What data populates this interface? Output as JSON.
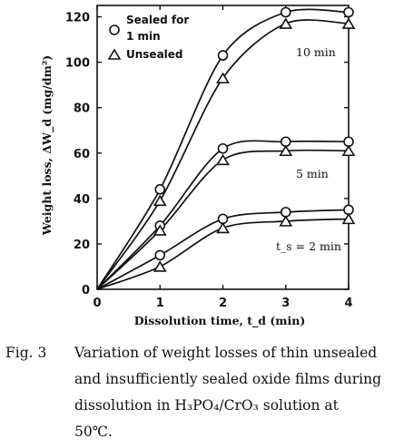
{
  "chart_data": {
    "type": "line",
    "x": [
      0,
      1,
      2,
      3,
      4
    ],
    "xlabel": "Dissolution time, t_d (min)",
    "ylabel": "Weight loss, ΔW_d (mg/dm²)",
    "xlim": [
      0,
      4
    ],
    "ylim": [
      0,
      125
    ],
    "xticks": [
      0,
      1,
      2,
      3,
      4
    ],
    "yticks": [
      0,
      20,
      40,
      60,
      80,
      100,
      120
    ],
    "grid": false,
    "legend": {
      "placement": "top-left",
      "entries": [
        {
          "marker": "circle",
          "lines": [
            "Sealed for",
            "1 min"
          ]
        },
        {
          "marker": "triangle",
          "lines": [
            "Unsealed"
          ]
        }
      ]
    },
    "series": [
      {
        "group": "10 min",
        "marker": "circle",
        "values": [
          0,
          44,
          103,
          122,
          122
        ]
      },
      {
        "group": "10 min",
        "marker": "triangle",
        "values": [
          0,
          39,
          93,
          117,
          117
        ]
      },
      {
        "group": "5 min",
        "marker": "circle",
        "values": [
          0,
          28,
          62,
          65,
          65
        ]
      },
      {
        "group": "5 min",
        "marker": "triangle",
        "values": [
          0,
          26,
          57,
          61,
          61
        ]
      },
      {
        "group": "t_s = 2 min",
        "marker": "circle",
        "values": [
          0,
          15,
          31,
          34,
          35
        ]
      },
      {
        "group": "t_s = 2 min",
        "marker": "triangle",
        "values": [
          0,
          10,
          27,
          30,
          31
        ]
      }
    ],
    "annotations": [
      "10 min",
      "5 min",
      "t_s = 2 min"
    ]
  },
  "caption": {
    "label": "Fig. 3",
    "lines": [
      "Variation of weight losses of thin unsealed",
      "and insufficiently sealed oxide films during",
      "dissolution in H₃PO₄/CrO₃ solution at",
      "50℃."
    ]
  }
}
